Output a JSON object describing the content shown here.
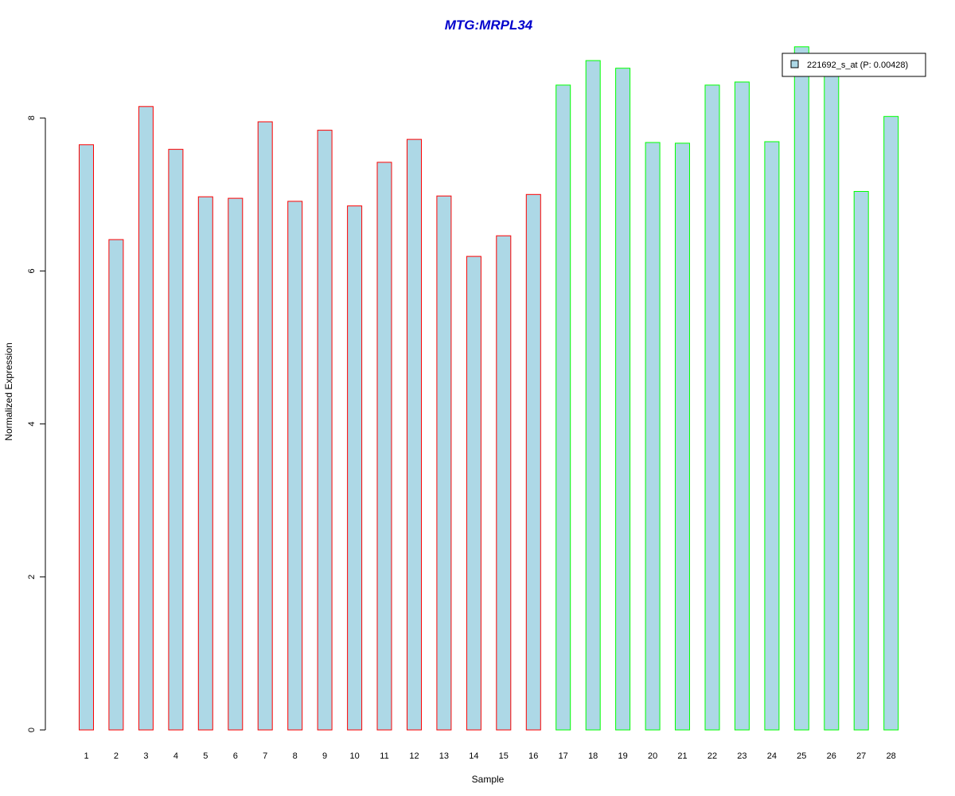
{
  "chart_data": {
    "type": "bar",
    "title": "MTG:MRPL34",
    "xlabel": "Sample",
    "ylabel": "Normalized Expression",
    "categories": [
      "1",
      "2",
      "3",
      "4",
      "5",
      "6",
      "7",
      "8",
      "9",
      "10",
      "11",
      "12",
      "13",
      "14",
      "15",
      "16",
      "17",
      "18",
      "19",
      "20",
      "21",
      "22",
      "23",
      "24",
      "25",
      "26",
      "27",
      "28"
    ],
    "series": [
      {
        "name": "221692_s_at (P: 0.00428)",
        "values": [
          7.65,
          6.41,
          8.15,
          7.59,
          6.97,
          6.95,
          7.95,
          6.91,
          7.84,
          6.85,
          7.42,
          7.72,
          6.98,
          6.19,
          6.46,
          7.0,
          8.43,
          8.75,
          8.65,
          7.68,
          7.67,
          8.43,
          8.47,
          7.69,
          8.93,
          8.62,
          7.04,
          8.02
        ]
      }
    ],
    "groups": [
      {
        "samples": [
          "1",
          "2",
          "3",
          "4",
          "5",
          "6",
          "7",
          "8",
          "9",
          "10",
          "11",
          "12",
          "13",
          "14",
          "15",
          "16"
        ],
        "border_color": "#ff0000"
      },
      {
        "samples": [
          "17",
          "18",
          "19",
          "20",
          "21",
          "22",
          "23",
          "24",
          "25",
          "26",
          "27",
          "28"
        ],
        "border_color": "#00ff00"
      }
    ],
    "yticks": [
      0,
      2,
      4,
      6,
      8
    ],
    "ylim": [
      0,
      9.2
    ],
    "grid": false,
    "legend_position": "top-right",
    "colors": {
      "bar_fill": "#add8e6",
      "title": "#0000cc",
      "axis": "#000000"
    }
  }
}
